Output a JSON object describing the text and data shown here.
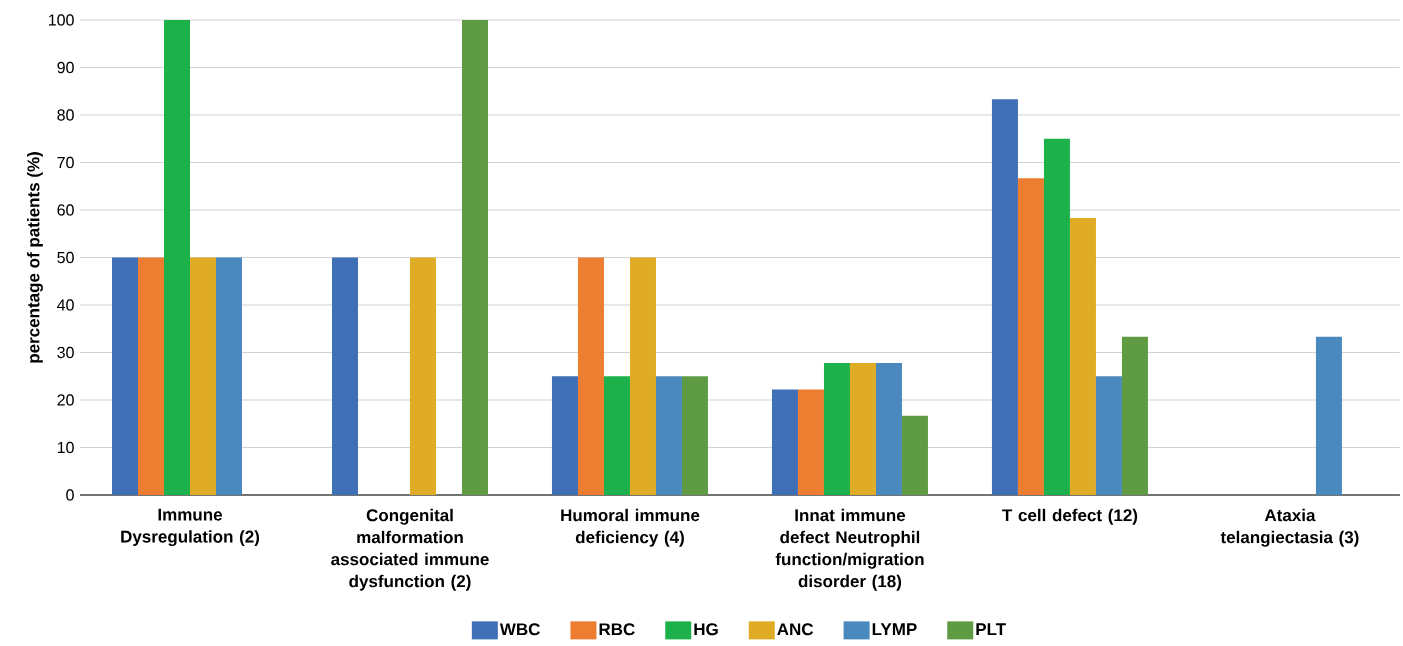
{
  "chart_data": {
    "type": "bar",
    "ylabel": "percentage of patients (%)",
    "categories": [
      "Immune Dysregulation (2)",
      "Congenital malformation associated immune dysfunction (2)",
      "Humoral immune deficiency (4)",
      "Innat immune defect Neutrophil function/migration disorder (18)",
      "T cell defect (12)",
      "Ataxia telangiectasia (3)"
    ],
    "series": [
      {
        "name": "WBC",
        "color": "#3f6fb5",
        "values": [
          50,
          50,
          25,
          22.2,
          83.3,
          0
        ]
      },
      {
        "name": "RBC",
        "color": "#ec7d31",
        "values": [
          50,
          0,
          50,
          22.2,
          66.7,
          0
        ]
      },
      {
        "name": "HG",
        "color": "#1db14b",
        "values": [
          100,
          0,
          25,
          27.8,
          75,
          0
        ]
      },
      {
        "name": "ANC",
        "color": "#e0ac26",
        "values": [
          50,
          50,
          50,
          27.8,
          58.3,
          0
        ]
      },
      {
        "name": "LYMP",
        "color": "#4a89be",
        "values": [
          50,
          0,
          25,
          27.8,
          25,
          33.3
        ]
      },
      {
        "name": "PLT",
        "color": "#5f9b43",
        "values": [
          0,
          100,
          25,
          16.7,
          33.3,
          0
        ]
      }
    ],
    "ylim": [
      0,
      100
    ],
    "yticks": [
      0,
      10,
      20,
      30,
      40,
      50,
      60,
      70,
      80,
      90,
      100
    ],
    "grid": "y",
    "legend": "bottom"
  }
}
